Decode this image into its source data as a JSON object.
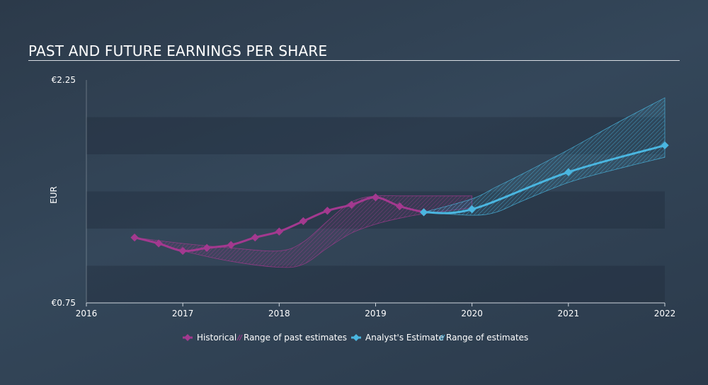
{
  "title": "PAST AND FUTURE EARNINGS PER SHARE",
  "chart_data": {
    "type": "line",
    "title": "PAST AND FUTURE EARNINGS PER SHARE",
    "ylabel": "EUR",
    "xlabel": "",
    "xlim": [
      2016,
      2022
    ],
    "ylim": [
      0.75,
      2.25
    ],
    "y_tick_labels": [
      {
        "value": 2.25,
        "label": "€2.25"
      },
      {
        "value": 0.75,
        "label": "€0.75"
      }
    ],
    "x_ticks": [
      2016,
      2017,
      2018,
      2019,
      2020,
      2021,
      2022
    ],
    "series": [
      {
        "name": "Historical",
        "color": "#a3398f",
        "x": [
          2016.5,
          2016.75,
          2017.0,
          2017.25,
          2017.5,
          2017.75,
          2018.0,
          2018.25,
          2018.5,
          2018.75,
          2019.0,
          2019.25,
          2019.5
        ],
        "y": [
          1.19,
          1.15,
          1.1,
          1.12,
          1.14,
          1.19,
          1.23,
          1.3,
          1.37,
          1.41,
          1.46,
          1.4,
          1.36
        ]
      },
      {
        "name": "Analyst's Estimate",
        "color": "#4ab6e0",
        "x": [
          2019.5,
          2020.0,
          2021.0,
          2022.0
        ],
        "y": [
          1.36,
          1.38,
          1.63,
          1.81
        ]
      }
    ],
    "ranges": [
      {
        "name": "Range of past estimates",
        "color": "#a3398f",
        "x": [
          2016.5,
          2017.0,
          2017.5,
          2018.0,
          2018.25,
          2018.5,
          2018.75,
          2019.0,
          2019.25,
          2019.5,
          2019.75,
          2020.0
        ],
        "upper": [
          1.19,
          1.15,
          1.12,
          1.1,
          1.16,
          1.3,
          1.43,
          1.47,
          1.47,
          1.47,
          1.47,
          1.47
        ],
        "lower": [
          1.19,
          1.1,
          1.03,
          0.99,
          1.01,
          1.12,
          1.22,
          1.28,
          1.32,
          1.35,
          1.37,
          1.39
        ]
      },
      {
        "name": "Range of estimates",
        "color": "#4ab6e0",
        "x": [
          2019.5,
          2020.0,
          2020.25,
          2020.5,
          2021.0,
          2021.5,
          2022.0
        ],
        "upper": [
          1.36,
          1.45,
          1.53,
          1.61,
          1.78,
          1.96,
          2.13
        ],
        "lower": [
          1.36,
          1.34,
          1.36,
          1.43,
          1.56,
          1.65,
          1.73
        ]
      }
    ],
    "legend_position": "bottom",
    "grid": "horizontal bands"
  }
}
